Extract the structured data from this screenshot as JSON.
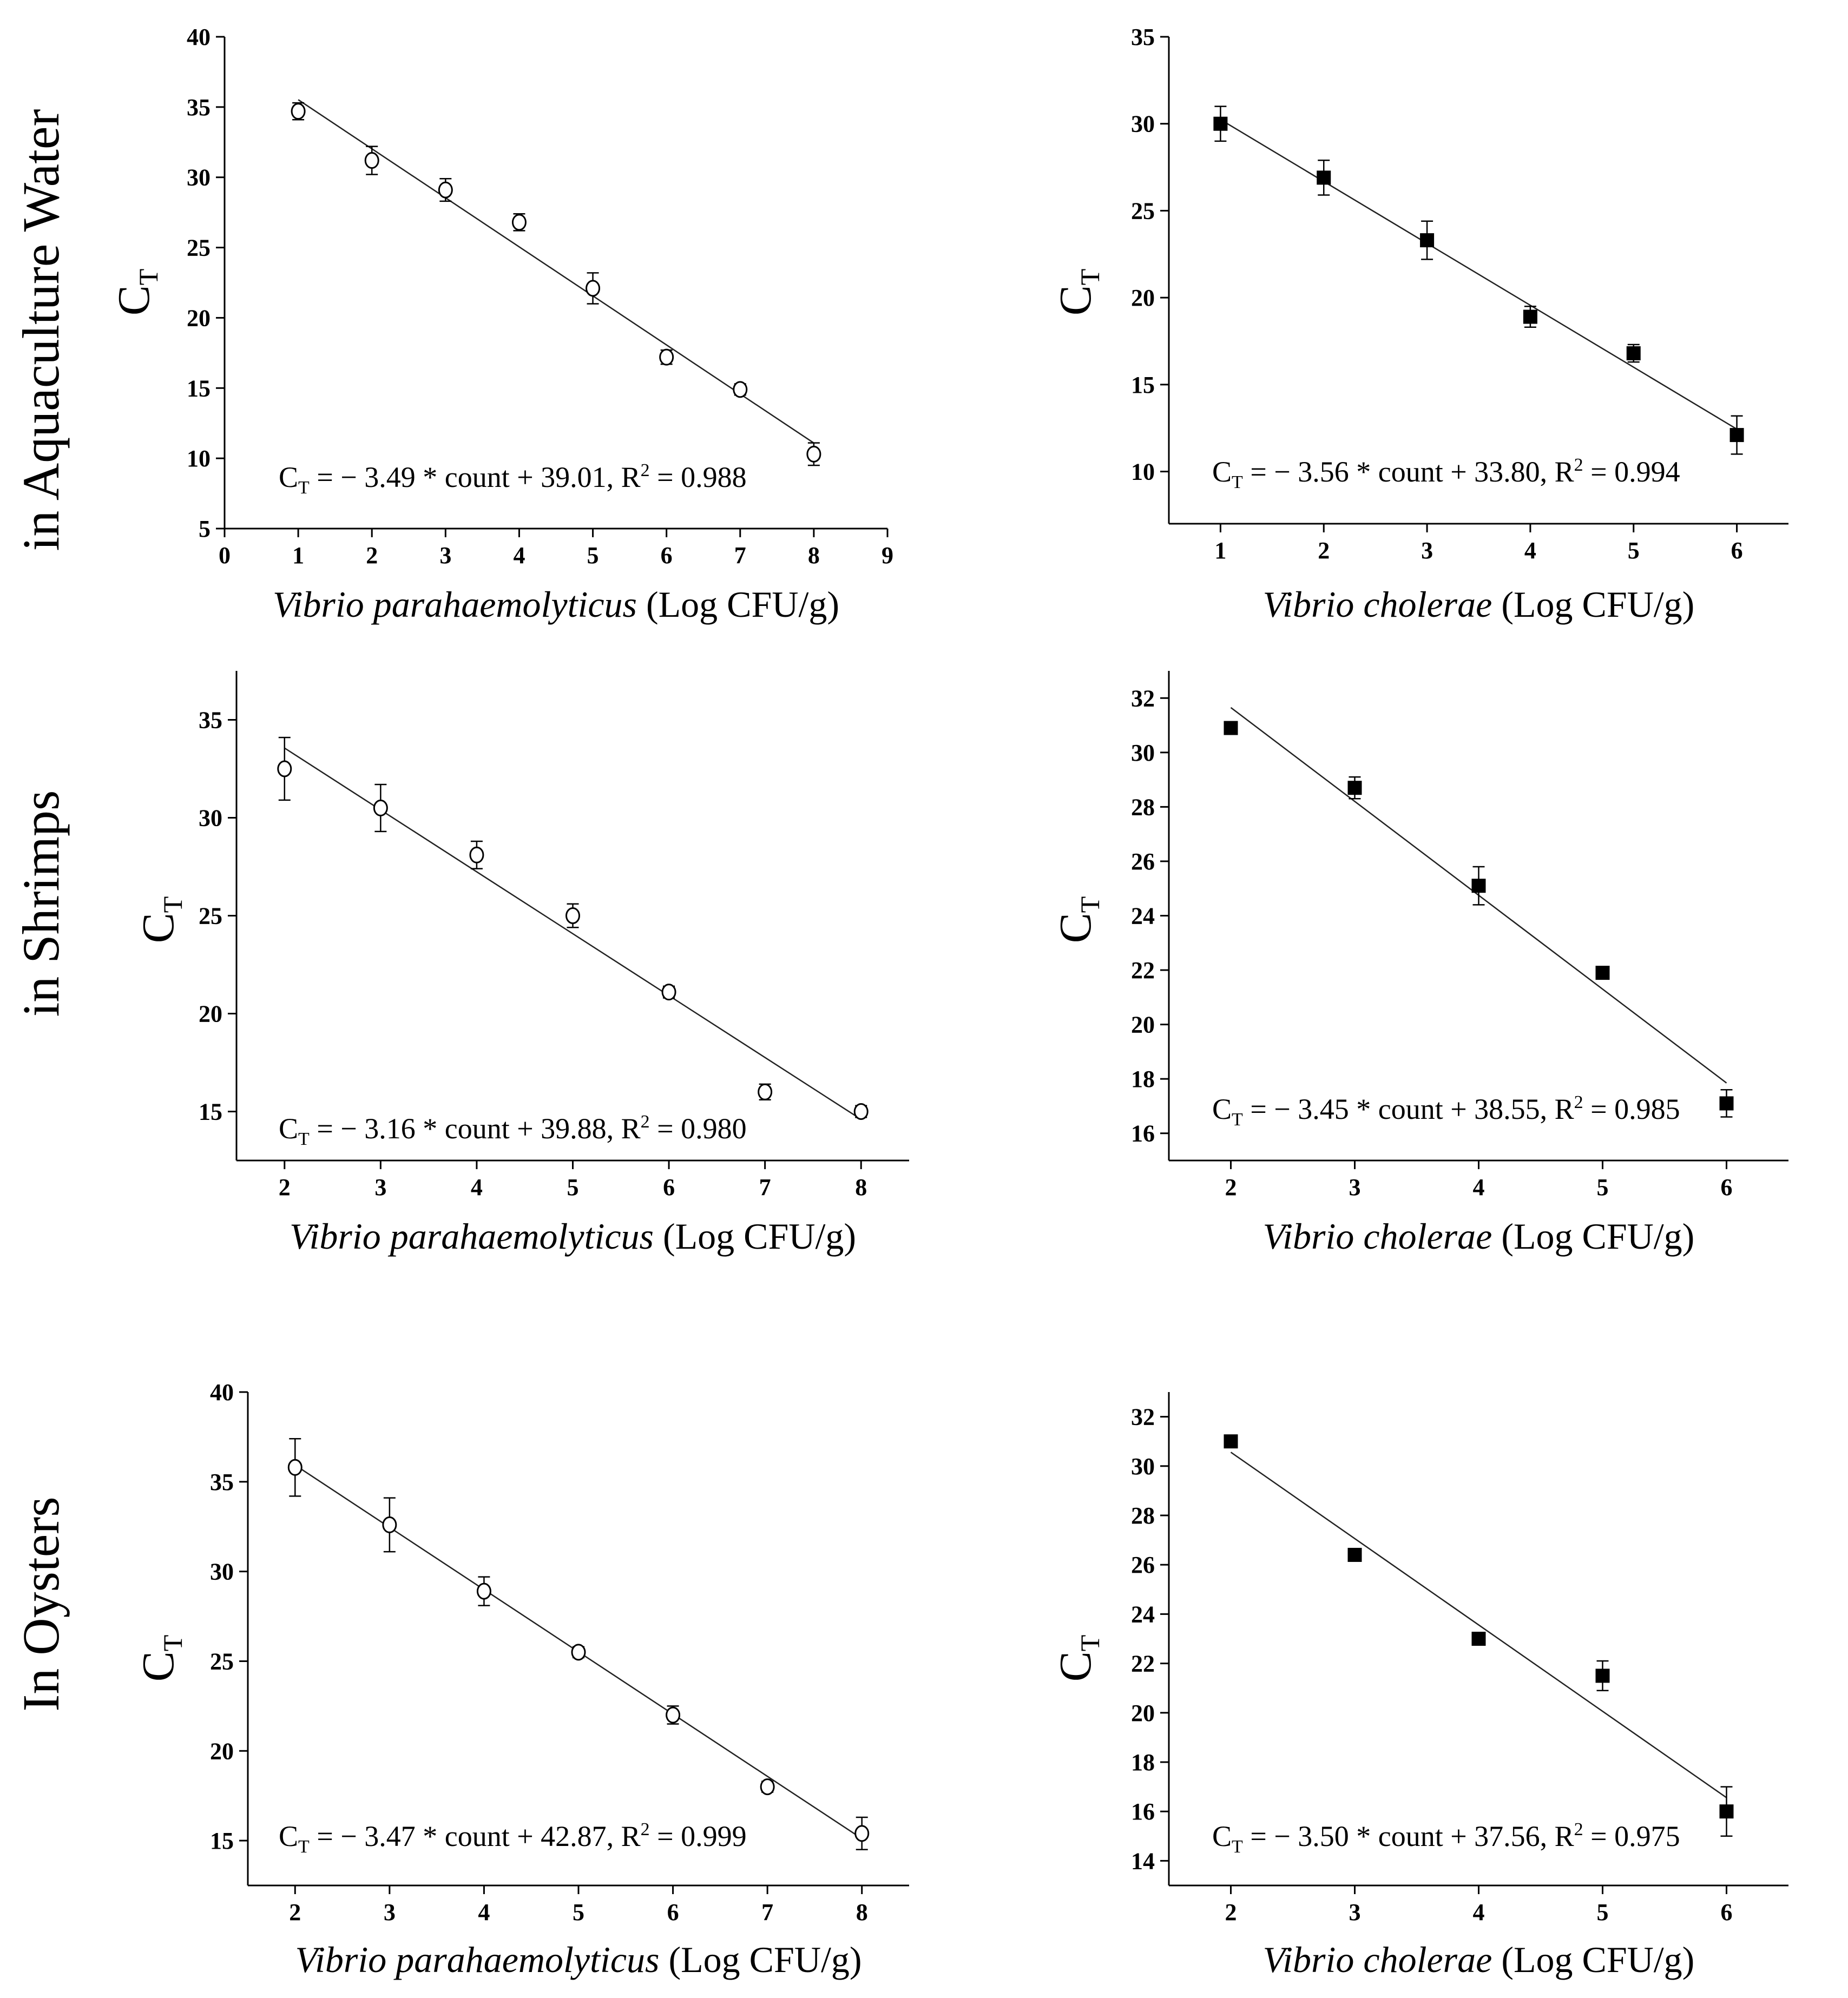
{
  "row_labels": [
    "in Aquaculture Water",
    "in Shrimps",
    "In Oysters"
  ],
  "chart_data": [
    {
      "type": "scatter",
      "row": "in Aquaculture Water",
      "marker": "open-circle",
      "ylabel": "C",
      "ylabel_sub": "T",
      "xlabel_italic": "Vibrio parahaemolyticus",
      "xlabel_rest": " (Log CFU/g)",
      "xlim": [
        0,
        9
      ],
      "ylim": [
        5,
        40
      ],
      "xticks": [
        0,
        1,
        2,
        3,
        4,
        5,
        6,
        7,
        8,
        9
      ],
      "yticks": [
        5,
        10,
        15,
        20,
        25,
        30,
        35,
        40
      ],
      "x": [
        1,
        2,
        3,
        4,
        5,
        6,
        7,
        8
      ],
      "y": [
        34.7,
        31.2,
        29.1,
        26.8,
        22.1,
        17.2,
        14.9,
        10.3
      ],
      "yerr": [
        0.6,
        1.0,
        0.8,
        0.6,
        1.1,
        0.5,
        0.4,
        0.8
      ],
      "fit": {
        "slope": -3.49,
        "intercept": 39.01,
        "x_range": [
          1,
          8
        ]
      },
      "equation": {
        "lhs": "C",
        "lhs_sub": "T",
        "text": " = − 3.49 * count + 39.01, R",
        "sup": "2",
        "tail": " = 0.988"
      }
    },
    {
      "type": "scatter",
      "row": "in Aquaculture Water",
      "marker": "filled-square",
      "ylabel": "C",
      "ylabel_sub": "T",
      "xlabel_italic": "Vibrio cholerae",
      "xlabel_rest": " (Log CFU/g)",
      "xlim": [
        0.5,
        6.5
      ],
      "ylim": [
        7,
        35
      ],
      "xticks": [
        1,
        2,
        3,
        4,
        5,
        6
      ],
      "yticks": [
        10,
        15,
        20,
        25,
        30,
        35
      ],
      "x": [
        1,
        2,
        3,
        4,
        5,
        6
      ],
      "y": [
        30.0,
        26.9,
        23.3,
        18.9,
        16.8,
        12.1
      ],
      "yerr": [
        1.0,
        1.0,
        1.1,
        0.6,
        0.5,
        1.1
      ],
      "fit": {
        "slope": -3.56,
        "intercept": 33.8,
        "x_range": [
          1,
          6
        ]
      },
      "equation": {
        "lhs": "C",
        "lhs_sub": "T",
        "text": " = − 3.56 * count + 33.80, R",
        "sup": "2",
        "tail": " = 0.994"
      }
    },
    {
      "type": "scatter",
      "row": "in Shrimps",
      "marker": "open-circle",
      "ylabel": "C",
      "ylabel_sub": "T",
      "xlabel_italic": "Vibrio parahaemolyticus",
      "xlabel_rest": " (Log CFU/g)",
      "xlim": [
        1.5,
        8.5
      ],
      "ylim": [
        12.5,
        37.5
      ],
      "xticks": [
        2,
        3,
        4,
        5,
        6,
        7,
        8
      ],
      "yticks": [
        15,
        20,
        25,
        30,
        35
      ],
      "x": [
        2,
        3,
        4,
        5,
        6,
        7,
        8
      ],
      "y": [
        32.5,
        30.5,
        28.1,
        25.0,
        21.1,
        16.0,
        15.0
      ],
      "yerr": [
        1.6,
        1.2,
        0.7,
        0.6,
        0.3,
        0.4,
        0.3
      ],
      "fit": {
        "slope": -3.16,
        "intercept": 39.88,
        "x_range": [
          2,
          8
        ]
      },
      "equation": {
        "lhs": "C",
        "lhs_sub": "T",
        "text": " = − 3.16 * count + 39.88, R",
        "sup": "2",
        "tail": " = 0.980"
      }
    },
    {
      "type": "scatter",
      "row": "in Shrimps",
      "marker": "filled-square",
      "ylabel": "C",
      "ylabel_sub": "T",
      "xlabel_italic": "Vibrio cholerae",
      "xlabel_rest": " (Log CFU/g)",
      "xlim": [
        1.5,
        6.5
      ],
      "ylim": [
        15,
        33
      ],
      "xticks": [
        2,
        3,
        4,
        5,
        6
      ],
      "yticks": [
        16,
        18,
        20,
        22,
        24,
        26,
        28,
        30,
        32
      ],
      "x": [
        2,
        3,
        4,
        5,
        6
      ],
      "y": [
        30.9,
        28.7,
        25.1,
        21.9,
        17.1
      ],
      "yerr": [
        0.2,
        0.4,
        0.7,
        0.2,
        0.5
      ],
      "fit": {
        "slope": -3.45,
        "intercept": 38.55,
        "x_range": [
          2,
          6
        ]
      },
      "equation": {
        "lhs": "C",
        "lhs_sub": "T",
        "text": " = − 3.45 * count + 38.55, R",
        "sup": "2",
        "tail": " = 0.985"
      }
    },
    {
      "type": "scatter",
      "row": "In Oysters",
      "marker": "open-circle",
      "ylabel": "C",
      "ylabel_sub": "T",
      "xlabel_italic": "Vibrio parahaemolyticus",
      "xlabel_rest": " (Log CFU/g)",
      "xlim": [
        1.5,
        8.5
      ],
      "ylim": [
        12.5,
        40
      ],
      "xticks": [
        2,
        3,
        4,
        5,
        6,
        7,
        8
      ],
      "yticks": [
        15,
        20,
        25,
        30,
        35,
        40
      ],
      "x": [
        2,
        3,
        4,
        5,
        6,
        7,
        8
      ],
      "y": [
        35.8,
        32.6,
        28.9,
        25.5,
        22.0,
        18.0,
        15.4
      ],
      "yerr": [
        1.6,
        1.5,
        0.8,
        0.3,
        0.5,
        0.3,
        0.9
      ],
      "fit": {
        "slope": -3.47,
        "intercept": 42.87,
        "x_range": [
          2,
          8
        ]
      },
      "equation": {
        "lhs": "C",
        "lhs_sub": "T",
        "text": " = − 3.47 * count + 42.87, R",
        "sup": "2",
        "tail": " = 0.999"
      }
    },
    {
      "type": "scatter",
      "row": "In Oysters",
      "marker": "filled-square",
      "ylabel": "C",
      "ylabel_sub": "T",
      "xlabel_italic": "Vibrio cholerae",
      "xlabel_rest": " (Log CFU/g)",
      "xlim": [
        1.5,
        6.5
      ],
      "ylim": [
        13,
        33
      ],
      "xticks": [
        2,
        3,
        4,
        5,
        6
      ],
      "yticks": [
        14,
        16,
        18,
        20,
        22,
        24,
        26,
        28,
        30,
        32
      ],
      "x": [
        2,
        3,
        4,
        5,
        6
      ],
      "y": [
        31.0,
        26.4,
        23.0,
        21.5,
        16.0
      ],
      "yerr": [
        0.1,
        0.1,
        0.1,
        0.6,
        1.0
      ],
      "fit": {
        "slope": -3.5,
        "intercept": 37.56,
        "x_range": [
          2,
          6
        ]
      },
      "equation": {
        "lhs": "C",
        "lhs_sub": "T",
        "text": " = − 3.50 * count + 37.56, R",
        "sup": "2",
        "tail": " = 0.975"
      }
    }
  ]
}
